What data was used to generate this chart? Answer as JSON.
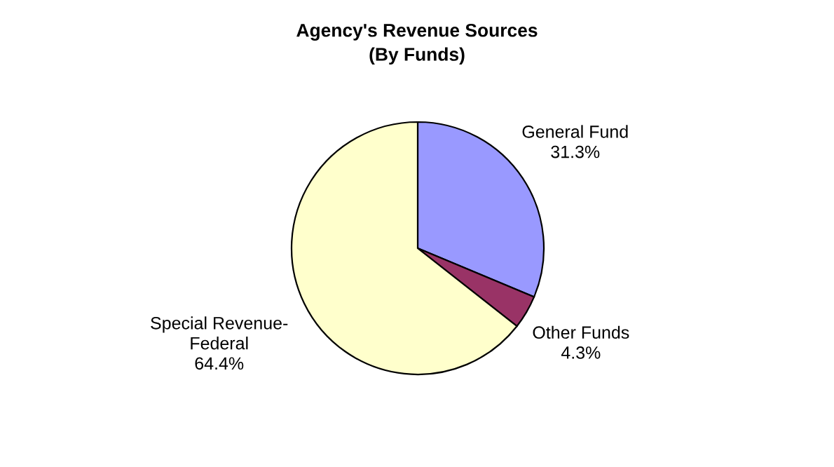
{
  "chart_data": {
    "type": "pie",
    "title": "Agency's Revenue Sources\n(By Funds)",
    "categories": [
      "General Fund",
      "Other Funds",
      "Special Revenue-\nFederal"
    ],
    "values": [
      31.3,
      4.3,
      64.4
    ],
    "colors": [
      "#9999ff",
      "#993366",
      "#ffffcc"
    ],
    "value_labels": [
      "31.3%",
      "4.3%",
      "64.4%"
    ]
  }
}
